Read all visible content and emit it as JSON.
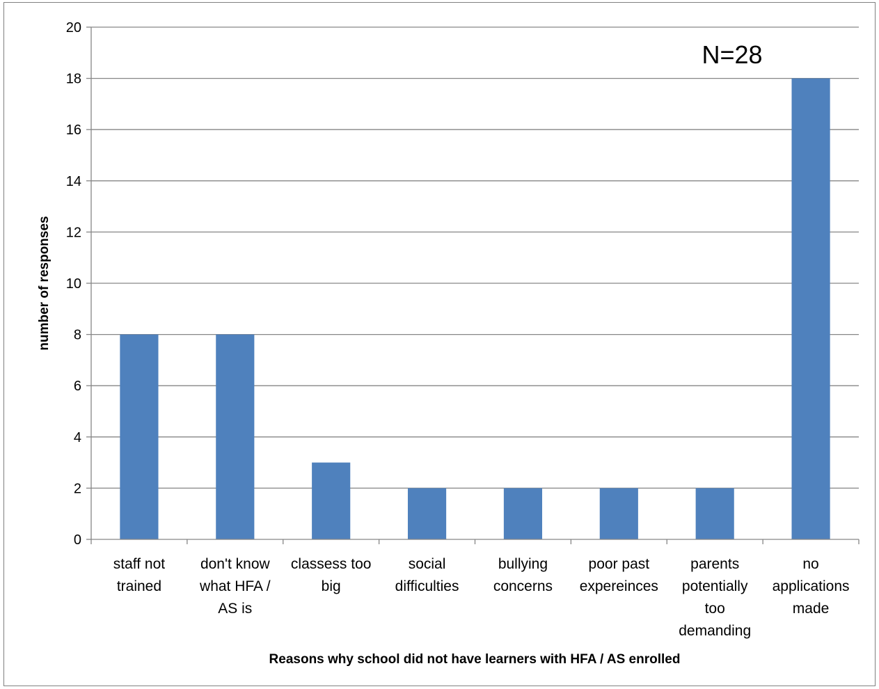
{
  "chart_data": {
    "type": "bar",
    "categories": [
      "staff not trained",
      "don't know what HFA / AS is",
      "classess too big",
      "social difficulties",
      "bullying concerns",
      "poor past expereinces",
      "parents potentially too demanding",
      "no applications made"
    ],
    "category_lines": [
      [
        "staff not",
        "trained"
      ],
      [
        "don't know",
        "what HFA /",
        "AS is"
      ],
      [
        "classess too",
        "big"
      ],
      [
        "social",
        "difficulties"
      ],
      [
        "bullying",
        "concerns"
      ],
      [
        "poor past",
        "expereinces"
      ],
      [
        "parents",
        "potentially",
        "too",
        "demanding"
      ],
      [
        "no",
        "applications",
        "made"
      ]
    ],
    "values": [
      8,
      8,
      3,
      2,
      2,
      2,
      2,
      18
    ],
    "xlabel": "Reasons why school did not have learners with HFA / AS enrolled",
    "ylabel": "number of responses",
    "ylim": [
      0,
      20
    ],
    "yticks": [
      "0",
      "2",
      "4",
      "6",
      "8",
      "10",
      "12",
      "14",
      "16",
      "18",
      "20"
    ],
    "annotation": "N=28",
    "bar_color": "#4f81bd",
    "grid": true,
    "legend": "none"
  }
}
